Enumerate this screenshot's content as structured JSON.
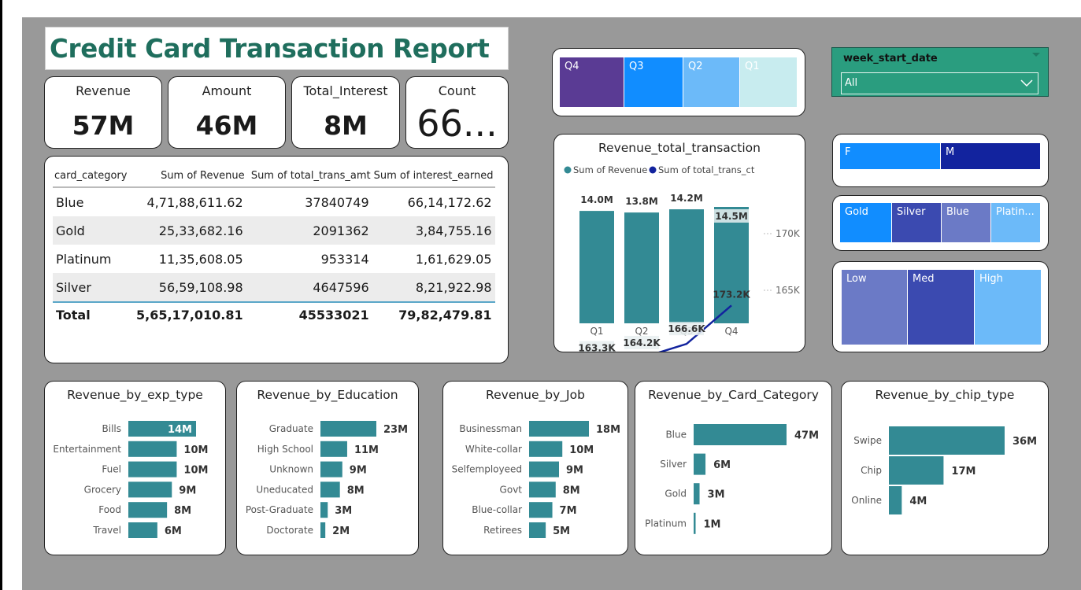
{
  "title": "Credit Card Transaction Report",
  "kpis": [
    {
      "label": "Revenue",
      "value": "57M"
    },
    {
      "label": "Amount",
      "value": "46M"
    },
    {
      "label": "Total_Interest",
      "value": "8M"
    },
    {
      "label": "Count",
      "value": "66..."
    }
  ],
  "matrix": {
    "headers": [
      "card_category",
      "Sum of Revenue",
      "Sum of total_trans_amt",
      "Sum of interest_earned"
    ],
    "rows": [
      [
        "Blue",
        "4,71,88,611.62",
        "37840749",
        "66,14,172.62"
      ],
      [
        "Gold",
        "25,33,682.16",
        "2091362",
        "3,84,755.16"
      ],
      [
        "Platinum",
        "11,35,608.05",
        "953314",
        "1,61,629.05"
      ],
      [
        "Silver",
        "56,59,108.98",
        "4647596",
        "8,21,922.98"
      ]
    ],
    "total": [
      "Total",
      "5,65,17,010.81",
      "45533021",
      "79,82,479.81"
    ]
  },
  "quarter_slicer": {
    "items": [
      "Q4",
      "Q3",
      "Q2",
      "Q1"
    ],
    "colors": [
      "#5a3b94",
      "#118dff",
      "#6cbaf9",
      "#c8ecef"
    ]
  },
  "week_filter": {
    "label": "week_start_date",
    "value": "All"
  },
  "gender_slicer": {
    "items": [
      "F",
      "M"
    ],
    "colors": [
      "#118dff",
      "#12239e"
    ]
  },
  "card_slicer": {
    "items": [
      "Gold",
      "Silver",
      "Blue",
      "Platin..."
    ],
    "colors": [
      "#118dff",
      "#3b4ab0",
      "#6b7ac6",
      "#6cbaf9"
    ]
  },
  "income_slicer": {
    "items": [
      "Low",
      "Med",
      "High"
    ],
    "colors": [
      "#6b7ac6",
      "#3b4ab0",
      "#6cbaf9"
    ]
  },
  "combo": {
    "title": "Revenue_total_transaction",
    "legend": [
      "Sum of Revenue",
      "Sum of total_trans_ct"
    ],
    "colors": {
      "bar": "#338a94",
      "line": "#12239e",
      "legend_bar": "#338a94",
      "legend_line": "#12239e"
    },
    "y2_ticks": [
      "170K",
      "165K"
    ]
  },
  "chart_data": [
    {
      "type": "bar",
      "title": "Revenue_total_transaction",
      "categories": [
        "Q1",
        "Q2",
        "Q3",
        "Q4"
      ],
      "series": [
        {
          "name": "Sum of Revenue",
          "values": [
            14.0,
            13.8,
            14.2,
            14.5
          ],
          "labels": [
            "14.0M",
            "13.8M",
            "14.2M",
            "14.5M"
          ]
        },
        {
          "name": "Sum of total_trans_ct",
          "type": "line",
          "values": [
            163.3,
            164.2,
            166.6,
            173.2
          ],
          "labels": [
            "163.3K",
            "164.2K",
            "166.6K",
            "173.2K"
          ]
        }
      ],
      "y2_ticks": [
        170,
        165
      ]
    },
    {
      "type": "bar",
      "title": "Revenue_by_exp_type",
      "categories": [
        "Bills",
        "Entertainment",
        "Fuel",
        "Grocery",
        "Food",
        "Travel"
      ],
      "values": [
        14,
        10,
        10,
        9,
        8,
        6
      ],
      "labels": [
        "14M",
        "10M",
        "10M",
        "9M",
        "8M",
        "6M"
      ]
    },
    {
      "type": "bar",
      "title": "Revenue_by_Education",
      "categories": [
        "Graduate",
        "High School",
        "Unknown",
        "Uneducated",
        "Post-Graduate",
        "Doctorate"
      ],
      "values": [
        23,
        11,
        9,
        8,
        3,
        2
      ],
      "labels": [
        "23M",
        "11M",
        "9M",
        "8M",
        "3M",
        "2M"
      ]
    },
    {
      "type": "bar",
      "title": "Revenue_by_Job",
      "categories": [
        "Businessman",
        "White-collar",
        "Selfemployeed",
        "Govt",
        "Blue-collar",
        "Retirees"
      ],
      "values": [
        18,
        10,
        9,
        8,
        7,
        5
      ],
      "labels": [
        "18M",
        "10M",
        "9M",
        "8M",
        "7M",
        "5M"
      ]
    },
    {
      "type": "bar",
      "title": "Revenue_by_Card_Category",
      "categories": [
        "Blue",
        "Silver",
        "Gold",
        "Platinum"
      ],
      "values": [
        47,
        6,
        3,
        1
      ],
      "labels": [
        "47M",
        "6M",
        "3M",
        "1M"
      ]
    },
    {
      "type": "bar",
      "title": "Revenue_by_chip_type",
      "categories": [
        "Swipe",
        "Chip",
        "Online"
      ],
      "values": [
        36,
        17,
        4
      ],
      "labels": [
        "36M",
        "17M",
        "4M"
      ]
    }
  ]
}
